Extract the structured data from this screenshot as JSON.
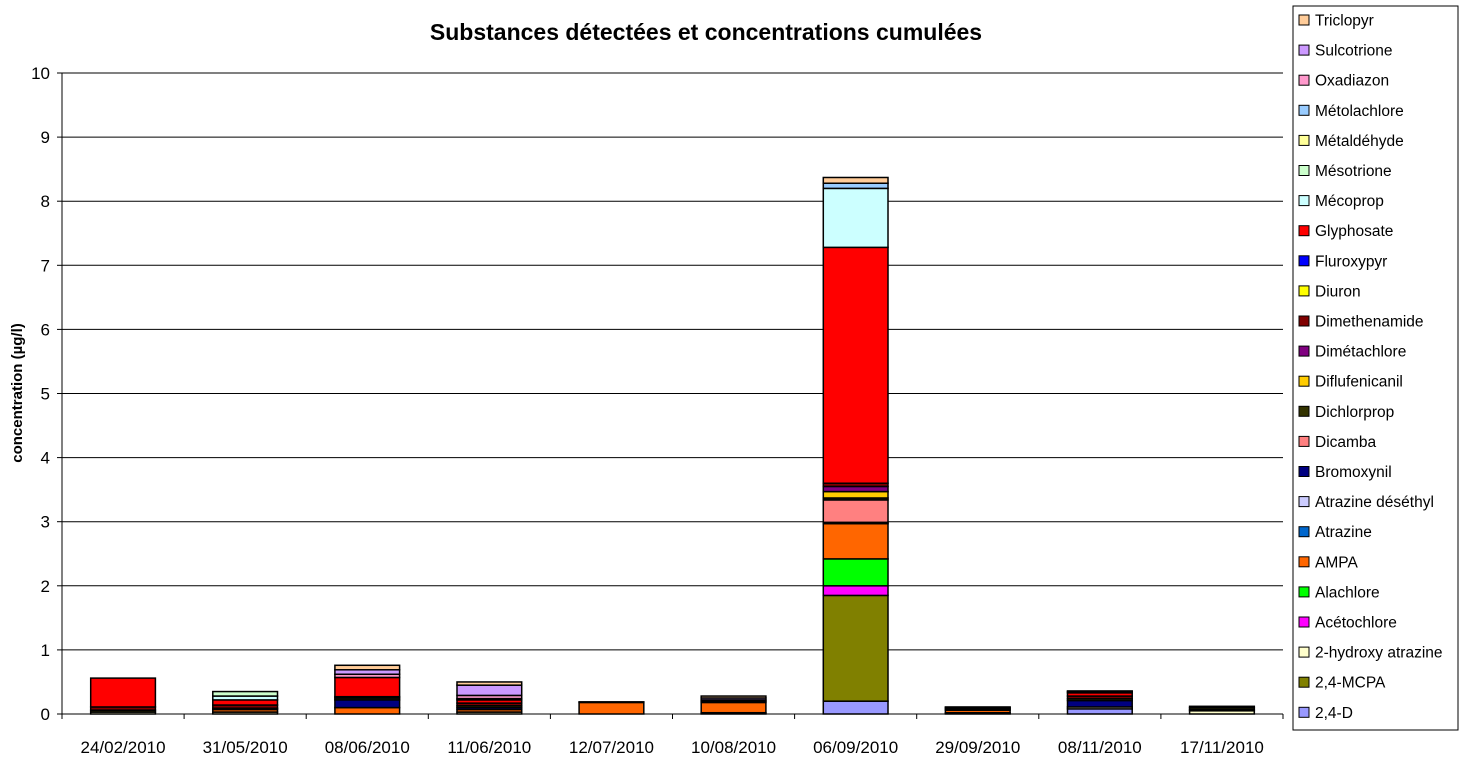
{
  "chart_data": {
    "type": "bar",
    "stacked": true,
    "title": "Substances détectées et concentrations cumulées",
    "xlabel": "",
    "ylabel": "concentration (µg/l)",
    "ylim": [
      0,
      10
    ],
    "yticks": [
      "0",
      "1",
      "2",
      "3",
      "4",
      "5",
      "6",
      "7",
      "8",
      "9",
      "10"
    ],
    "grid": true,
    "legend_position": "right",
    "categories": [
      "24/02/2010",
      "31/05/2010",
      "08/06/2010",
      "11/06/2010",
      "12/07/2010",
      "10/08/2010",
      "06/09/2010",
      "29/09/2010",
      "08/11/2010",
      "17/11/2010"
    ],
    "series": [
      {
        "name": "2,4-D",
        "color": "#9999ff",
        "values": [
          0,
          0,
          0,
          0,
          0,
          0,
          0.2,
          0,
          0.08,
          0
        ]
      },
      {
        "name": "2,4-MCPA",
        "color": "#808000",
        "values": [
          0,
          0,
          0,
          0,
          0,
          0,
          1.65,
          0,
          0,
          0
        ]
      },
      {
        "name": "2-hydroxy atrazine",
        "color": "#ffffcc",
        "values": [
          0.03,
          0.03,
          0,
          0.03,
          0,
          0.02,
          0,
          0.02,
          0.03,
          0.05
        ]
      },
      {
        "name": "Acétochlore",
        "color": "#ff00ff",
        "values": [
          0,
          0,
          0,
          0,
          0,
          0,
          0.15,
          0,
          0,
          0
        ]
      },
      {
        "name": "Alachlore",
        "color": "#00ff00",
        "values": [
          0,
          0,
          0,
          0,
          0,
          0,
          0.42,
          0,
          0,
          0
        ]
      },
      {
        "name": "AMPA",
        "color": "#ff6600",
        "values": [
          0,
          0.04,
          0.1,
          0.04,
          0.18,
          0.16,
          0.55,
          0.04,
          0,
          0
        ]
      },
      {
        "name": "Atrazine",
        "color": "#0066cc",
        "values": [
          0,
          0,
          0,
          0,
          0,
          0,
          0,
          0,
          0,
          0
        ]
      },
      {
        "name": "Atrazine déséthyl",
        "color": "#ccccff",
        "values": [
          0,
          0,
          0,
          0,
          0,
          0,
          0,
          0,
          0,
          0
        ]
      },
      {
        "name": "Bromoxynil",
        "color": "#000080",
        "values": [
          0,
          0,
          0.12,
          0.03,
          0,
          0,
          0.02,
          0,
          0.1,
          0.02
        ]
      },
      {
        "name": "Dicamba",
        "color": "#ff8080",
        "values": [
          0,
          0,
          0,
          0,
          0,
          0,
          0.35,
          0,
          0,
          0
        ]
      },
      {
        "name": "Dichlorprop",
        "color": "#333300",
        "values": [
          0.03,
          0.02,
          0.03,
          0.03,
          0,
          0.02,
          0.03,
          0.02,
          0.03,
          0.03
        ]
      },
      {
        "name": "Diflufenicanil",
        "color": "#ffcc00",
        "values": [
          0,
          0,
          0,
          0,
          0,
          0,
          0.1,
          0,
          0,
          0
        ]
      },
      {
        "name": "Dimétachlore",
        "color": "#800080",
        "values": [
          0,
          0,
          0,
          0,
          0,
          0,
          0.08,
          0,
          0,
          0
        ]
      },
      {
        "name": "Dimethenamide",
        "color": "#800000",
        "values": [
          0.05,
          0.05,
          0.02,
          0.04,
          0,
          0,
          0.05,
          0.02,
          0.04,
          0.02
        ]
      },
      {
        "name": "Diuron",
        "color": "#ffff00",
        "values": [
          0,
          0,
          0,
          0,
          0,
          0,
          0,
          0,
          0,
          0
        ]
      },
      {
        "name": "Fluroxypyr",
        "color": "#0000ff",
        "values": [
          0,
          0,
          0,
          0,
          0,
          0,
          0,
          0,
          0,
          0
        ]
      },
      {
        "name": "Glyphosate",
        "color": "#ff0000",
        "values": [
          0.45,
          0.08,
          0.3,
          0.05,
          0,
          0.02,
          3.68,
          0,
          0.05,
          0
        ]
      },
      {
        "name": "Mécoprop",
        "color": "#ccffff",
        "values": [
          0,
          0.06,
          0,
          0,
          0,
          0,
          0.92,
          0,
          0,
          0
        ]
      },
      {
        "name": "Mésotrione",
        "color": "#ccffcc",
        "values": [
          0,
          0.07,
          0,
          0.02,
          0,
          0,
          0,
          0,
          0,
          0
        ]
      },
      {
        "name": "Métaldéhyde",
        "color": "#ffff99",
        "values": [
          0,
          0,
          0,
          0,
          0,
          0,
          0,
          0,
          0,
          0
        ]
      },
      {
        "name": "Métolachlore",
        "color": "#99ccff",
        "values": [
          0,
          0,
          0,
          0,
          0,
          0,
          0.08,
          0,
          0,
          0
        ]
      },
      {
        "name": "Oxadiazon",
        "color": "#ff99cc",
        "values": [
          0,
          0,
          0.05,
          0.05,
          0,
          0,
          0,
          0,
          0,
          0
        ]
      },
      {
        "name": "Sulcotrione",
        "color": "#cc99ff",
        "values": [
          0,
          0,
          0.07,
          0.16,
          0,
          0.03,
          0,
          0,
          0.02,
          0
        ]
      },
      {
        "name": "Triclopyr",
        "color": "#ffcc99",
        "values": [
          0,
          0,
          0.07,
          0.05,
          0.01,
          0.03,
          0.09,
          0.01,
          0.01,
          0
        ]
      }
    ]
  }
}
